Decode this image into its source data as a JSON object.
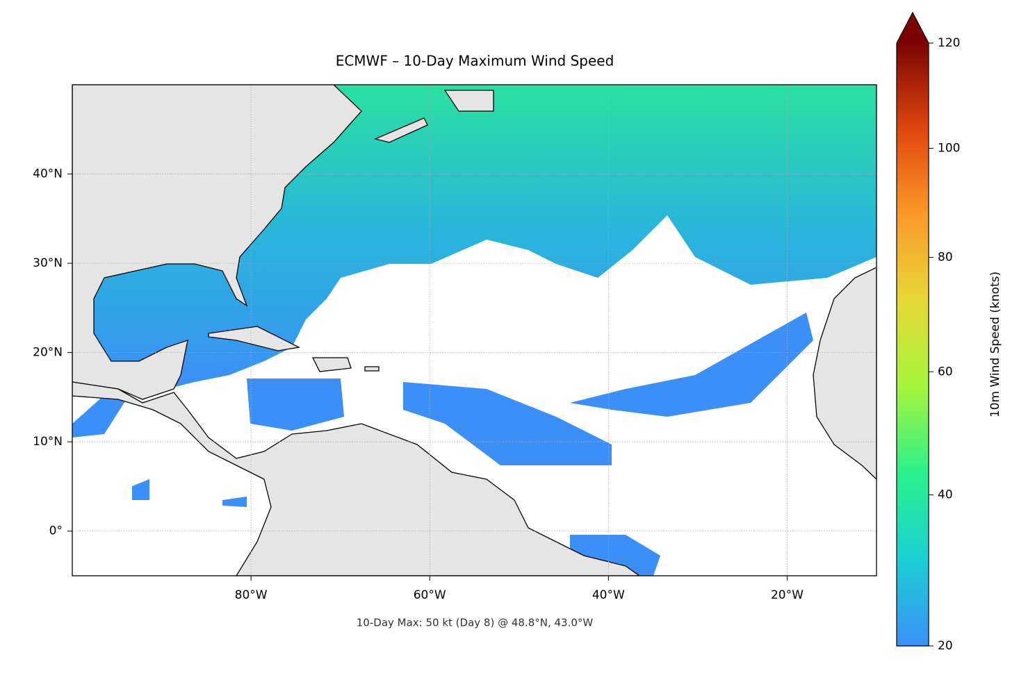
{
  "chart_data": {
    "type": "map",
    "title": "ECMWF – 10-Day Maximum Wind Speed",
    "annotation": "10-Day Max: 50 kt (Day 8) @ 48.8°N, 43.0°W",
    "xlim": [
      -100,
      -10
    ],
    "ylim": [
      -5,
      50
    ],
    "xticks": [
      {
        "value": -80,
        "label": "80°W"
      },
      {
        "value": -60,
        "label": "60°W"
      },
      {
        "value": -40,
        "label": "40°W"
      },
      {
        "value": -20,
        "label": "20°W"
      }
    ],
    "yticks": [
      {
        "value": 0,
        "label": "0°"
      },
      {
        "value": 10,
        "label": "10°N"
      },
      {
        "value": 20,
        "label": "20°N"
      },
      {
        "value": 30,
        "label": "30°N"
      },
      {
        "value": 40,
        "label": "40°N"
      }
    ],
    "grid": true,
    "colorbar": {
      "label": "10m Wind Speed (knots)",
      "lim": [
        20,
        120
      ],
      "ticks": [
        20,
        40,
        60,
        80,
        100,
        120
      ],
      "gamma": 0.86,
      "extend": "max",
      "colormap": [
        "#3b8ff7",
        "#1bcfd4",
        "#2af08c",
        "#a4f53c",
        "#e6d838",
        "#fb9a29",
        "#e0460e",
        "#7a0403"
      ]
    }
  }
}
